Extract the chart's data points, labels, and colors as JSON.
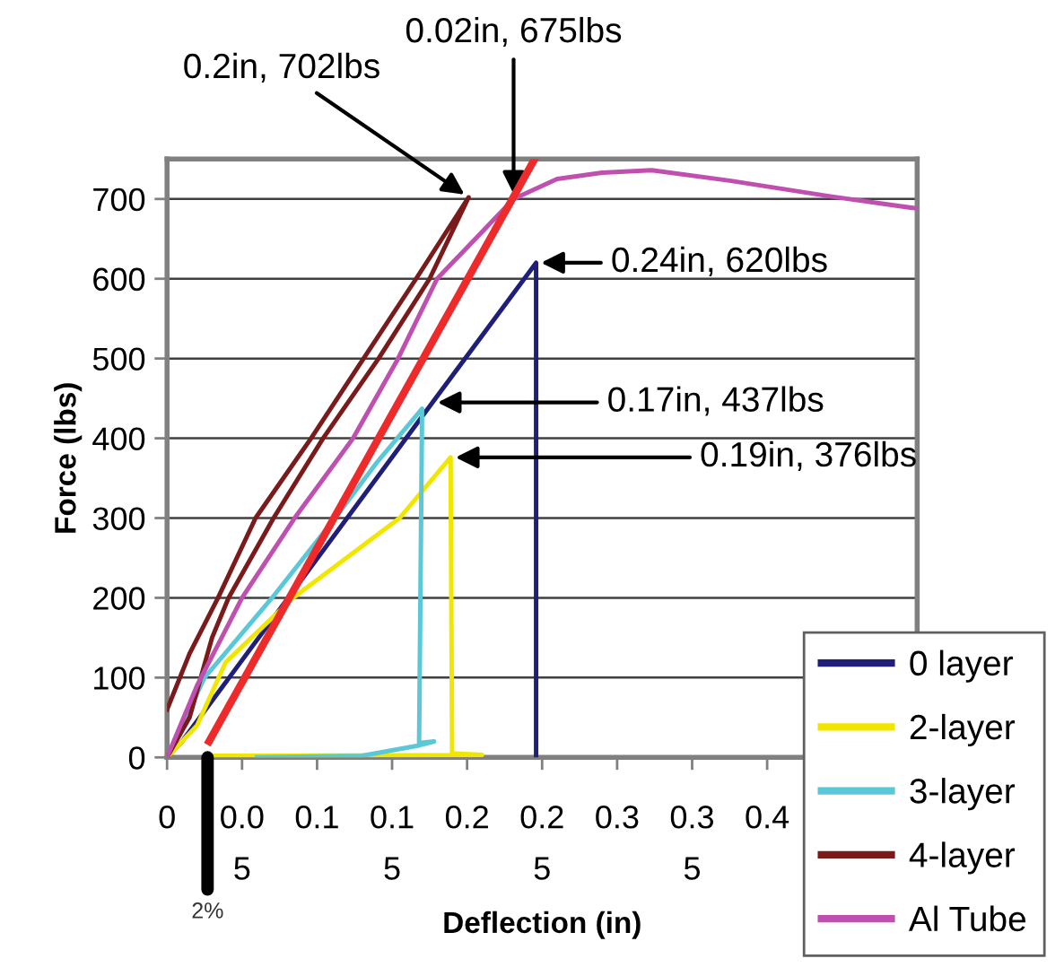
{
  "chart_data": {
    "type": "line",
    "xlabel": "Deflection (in)",
    "ylabel": "Force (lbs)",
    "xlim": [
      0,
      0.5
    ],
    "ylim": [
      0,
      750
    ],
    "xticks": [
      0,
      {
        "value": 0.05,
        "label": "0.0\n5"
      },
      0.1,
      {
        "value": 0.15,
        "label": "0.1\n5"
      },
      0.2,
      {
        "value": 0.25,
        "label": "0.2\n5"
      },
      0.3,
      {
        "value": 0.35,
        "label": "0.3\n5"
      },
      0.4
    ],
    "yticks": [
      0,
      100,
      200,
      300,
      400,
      500,
      600,
      700
    ],
    "grid": "y",
    "legend": "bottom right",
    "marker": "none",
    "line_style": "solid",
    "series": [
      {
        "name": "0 layer",
        "color": "#1f1f7a",
        "x": [
          0,
          0.01,
          0.177,
          0.246,
          0.246
        ],
        "values": [
          0,
          20,
          445,
          620,
          0
        ]
      },
      {
        "name": "2-layer",
        "color": "#f0e600",
        "x": [
          0,
          0.02,
          0.039,
          0.084,
          0.155,
          0.189,
          0.19,
          0.21,
          0.03
        ],
        "values": [
          0,
          40,
          119,
          200,
          300,
          376,
          5,
          3,
          2
        ]
      },
      {
        "name": "3-layer",
        "color": "#5bc8d8",
        "x": [
          0,
          0.025,
          0.07,
          0.112,
          0.14,
          0.17,
          0.168,
          0.178,
          0.168,
          0.13,
          0.06
        ],
        "values": [
          0,
          100,
          200,
          300,
          370,
          437,
          18,
          20,
          15,
          2,
          0
        ]
      },
      {
        "name": "4-layer",
        "color": "#7a1a1a",
        "x": [
          0,
          0.015,
          0.03,
          0.041,
          0.071,
          0.104,
          0.141,
          0.175,
          0.201,
          0.166,
          0.131,
          0.096,
          0.059,
          0.034,
          0.015,
          0
        ],
        "values": [
          0,
          50,
          150,
          200,
          300,
          400,
          500,
          600,
          702,
          600,
          500,
          400,
          300,
          200,
          130,
          60
        ]
      },
      {
        "name": "Al Tube",
        "color": "#c050b0",
        "x": [
          0,
          0.02,
          0.05,
          0.085,
          0.124,
          0.154,
          0.18,
          0.231,
          0.26,
          0.29,
          0.323,
          0.375,
          0.443,
          0.5
        ],
        "values": [
          0,
          90,
          200,
          300,
          400,
          500,
          600,
          700,
          725,
          733,
          736,
          723,
          703,
          688
        ]
      },
      {
        "color": "#ee2a2a",
        "x": [
          0.028,
          0.245
        ],
        "values": [
          20,
          750
        ]
      }
    ],
    "annotations": [
      {
        "text": "2%",
        "x": 0.027,
        "y": 0
      },
      {
        "text": "0.2in, 702lbs",
        "x": 0.201,
        "y": 702
      },
      {
        "text": "0.02in, 675lbs",
        "x": 0.231,
        "y": 700
      },
      {
        "text": "0.24in, 620lbs",
        "x": 0.246,
        "y": 620
      },
      {
        "text": "0.17in, 437lbs",
        "x": 0.177,
        "y": 445
      },
      {
        "text": "0.19in, 376lbs",
        "x": 0.189,
        "y": 376
      }
    ]
  }
}
